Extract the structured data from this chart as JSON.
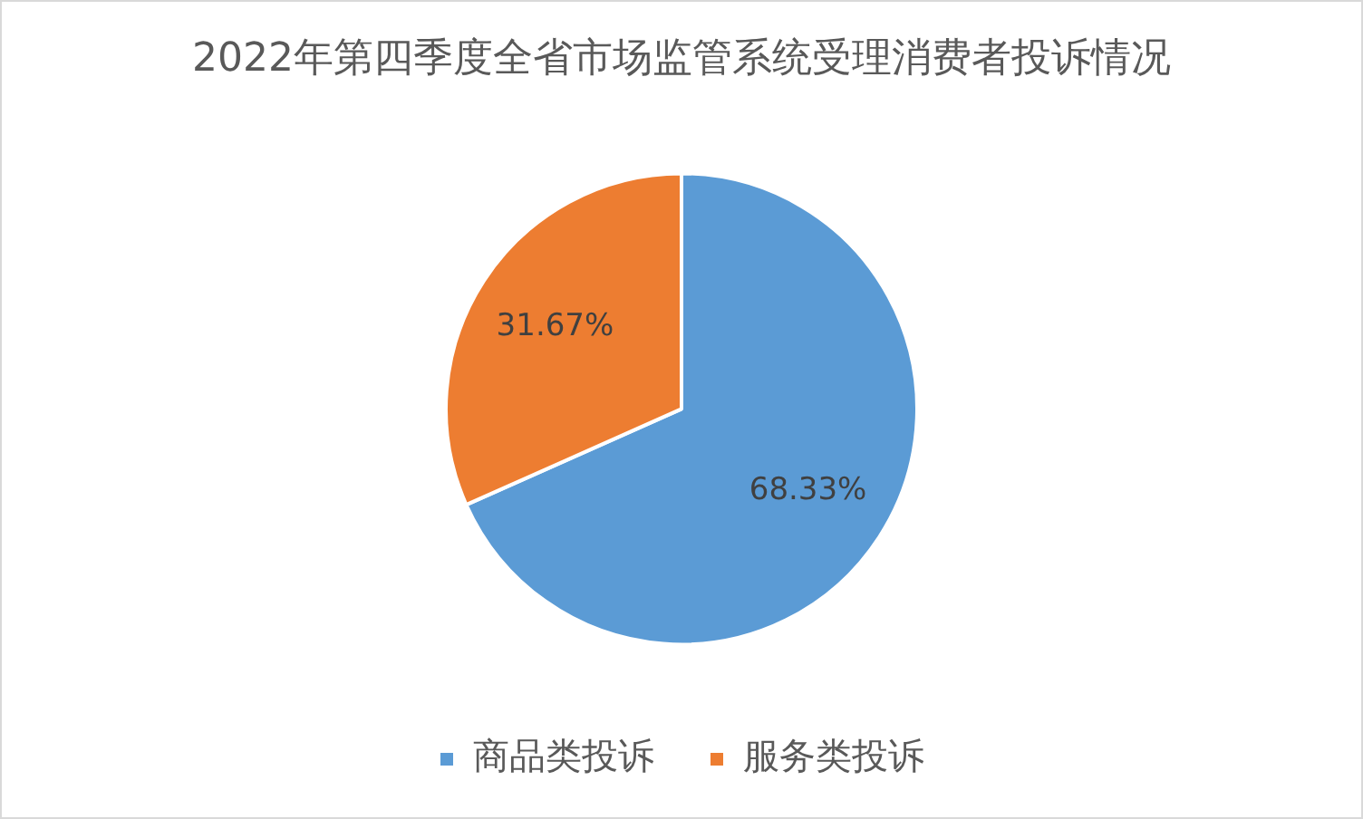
{
  "chart_data": {
    "type": "pie",
    "title": "2022年第四季度全省市场监管系统受理消费者投诉情况",
    "categories": [
      "商品类投诉",
      "服务类投诉"
    ],
    "values": [
      68.33,
      31.67
    ],
    "colors": [
      "#5b9bd5",
      "#ed7d31"
    ],
    "value_labels": [
      "68.33%",
      "31.67%"
    ],
    "legend": "bottom"
  }
}
